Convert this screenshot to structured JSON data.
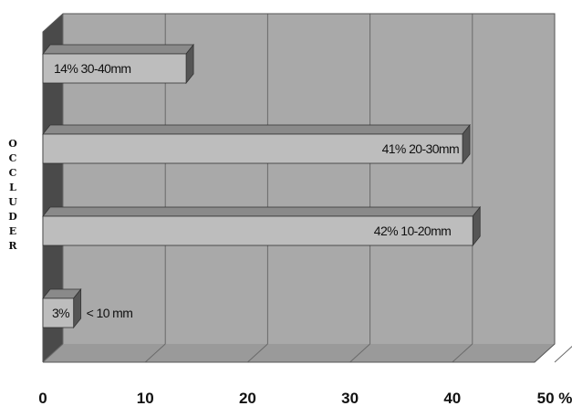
{
  "chart_data": {
    "type": "bar",
    "orientation": "horizontal",
    "ylabel": "OCCLUDER",
    "xlim": [
      0,
      50
    ],
    "x_ticks": [
      "0",
      "10",
      "20",
      "30",
      "40",
      "50 %"
    ],
    "grid": true,
    "categories": [
      "30-40mm",
      "20-30mm",
      "10-20mm",
      "< 10 mm"
    ],
    "values": [
      14,
      41,
      42,
      3
    ],
    "labels": [
      "14%  30-40mm",
      "41%  20-30mm",
      "42%  10-20mm",
      "3%",
      "< 10 mm"
    ],
    "colors": {
      "bar": "#bdbdbd",
      "bar_side": "#555555",
      "bar_top": "#8a8a8a",
      "wall": "#a9a9a9",
      "floor": "#9a9a9a",
      "grid": "#6a6a6a",
      "left_wall": "#4a4a4a"
    }
  }
}
